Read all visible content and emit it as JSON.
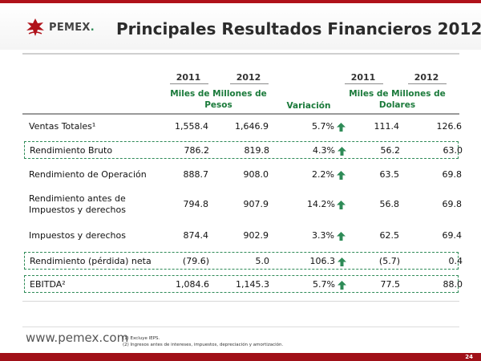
{
  "header": {
    "logo_text": "PEMEX",
    "title": "Principales Resultados Financieros 2012"
  },
  "columns": {
    "pesos_years": [
      "2011",
      "2012"
    ],
    "dollar_years": [
      "2011",
      "2012"
    ],
    "pesos_units": [
      "Miles de Millones de",
      "Pesos"
    ],
    "variation": "Variación",
    "dollar_units": [
      "Miles de Millones de",
      "Dolares"
    ]
  },
  "rows": [
    {
      "label": [
        "Ventas Totales¹"
      ],
      "p2011": "1,558.4",
      "p2012": "1,646.9",
      "var": "5.7%",
      "d2011": "111.4",
      "d2012": "126.6",
      "boxed": false
    },
    {
      "label": [
        "Rendimiento Bruto"
      ],
      "p2011": "786.2",
      "p2012": "819.8",
      "var": "4.3%",
      "d2011": "56.2",
      "d2012": "63.0",
      "boxed": true
    },
    {
      "label": [
        "Rendimiento de Operación"
      ],
      "p2011": "888.7",
      "p2012": "908.0",
      "var": "2.2%",
      "d2011": "63.5",
      "d2012": "69.8",
      "boxed": false
    },
    {
      "label": [
        "Rendimiento antes de",
        "Impuestos y derechos"
      ],
      "p2011": "794.8",
      "p2012": "907.9",
      "var": "14.2%",
      "d2011": "56.8",
      "d2012": "69.8",
      "boxed": false
    },
    {
      "label": [
        "Impuestos y derechos"
      ],
      "p2011": "874.4",
      "p2012": "902.9",
      "var": "3.3%",
      "d2011": "62.5",
      "d2012": "69.4",
      "boxed": false
    },
    {
      "label": [
        "Rendimiento (pérdida) neta"
      ],
      "p2011": "(79.6)",
      "p2012": "5.0",
      "var": "106.3",
      "d2011": "(5.7)",
      "d2012": "0.4",
      "boxed": true
    },
    {
      "label": [
        "EBITDA²"
      ],
      "p2011": "1,084.6",
      "p2012": "1,145.3",
      "var": "5.7%",
      "d2011": "77.5",
      "d2012": "88.0",
      "boxed": true
    }
  ],
  "footer": {
    "site": "www.pemex.com",
    "notes": [
      "(1) Excluye IEPS.",
      "(2) Ingresos antes de intereses, impuestos, depreciación y amortización."
    ],
    "page": "24"
  },
  "colors": {
    "brand_red": "#b0121a",
    "accent_green": "#1a7a3a",
    "arrow_green": "#2e8b57"
  }
}
